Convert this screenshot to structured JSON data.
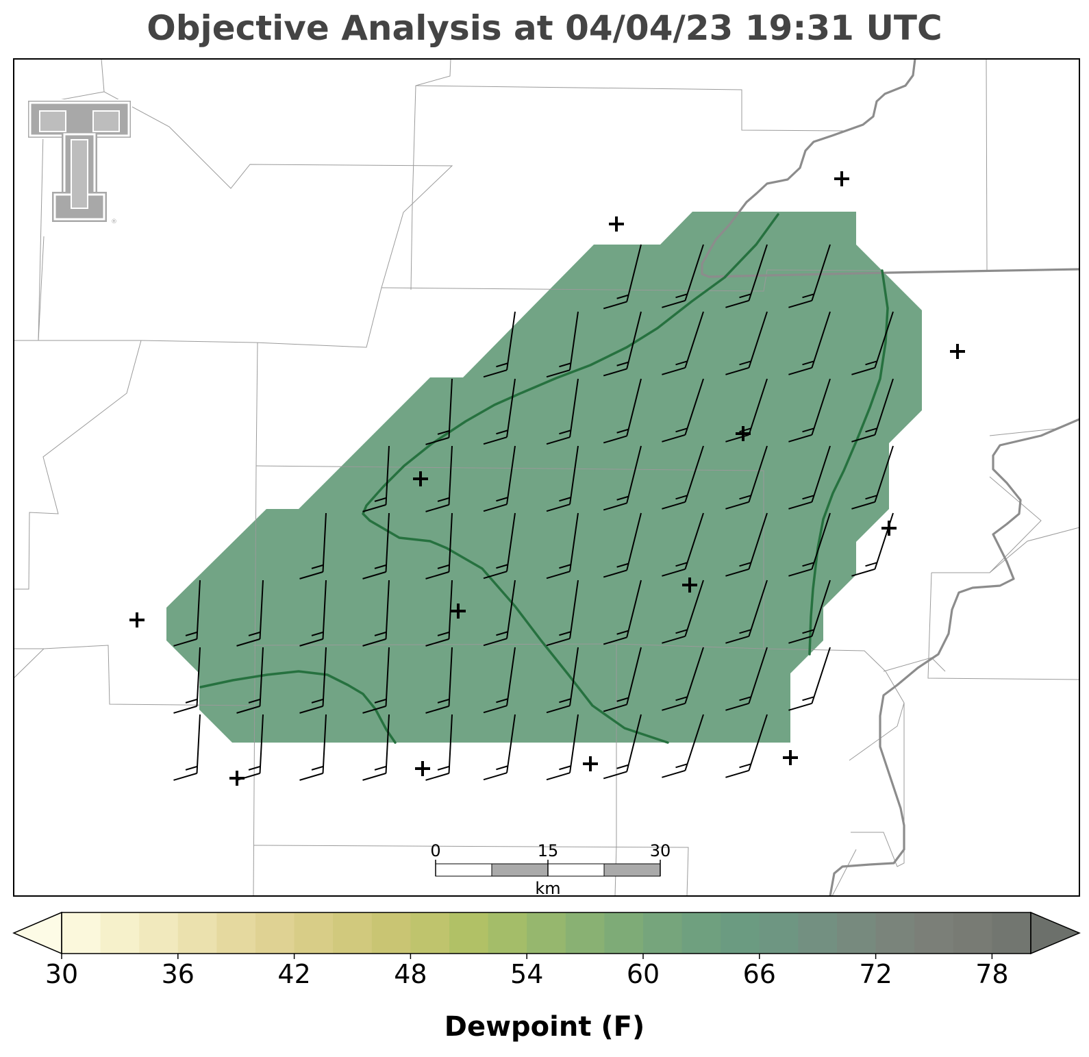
{
  "title": "Objective Analysis at 04/04/23 19:31 UTC",
  "colorbar": {
    "label": "Dewpoint (F)",
    "ticks": [
      "30",
      "36",
      "42",
      "48",
      "54",
      "60",
      "66",
      "72",
      "78"
    ],
    "min": 30,
    "max": 80,
    "step": 2,
    "colors": [
      "#fbf8dc",
      "#f6f1cb",
      "#f1e9bd",
      "#ebe1ae",
      "#e5d99f",
      "#dfd293",
      "#d8cd87",
      "#d1c97d",
      "#c9c573",
      "#bfc46d",
      "#b1c166",
      "#a4bd69",
      "#96b76e",
      "#89b173",
      "#7eab77",
      "#76a57c",
      "#6fa07f",
      "#6b9b81",
      "#6e9682",
      "#739081",
      "#778a7e",
      "#7a847b",
      "#7b7f78",
      "#787b74",
      "#727670"
    ],
    "extend": "both"
  },
  "scalebar": {
    "ticks": [
      "0",
      "15",
      "30"
    ],
    "unit": "km"
  },
  "logo": {
    "text": "TT",
    "registered": "®"
  },
  "colors": {
    "field_fill": "#6a9f7e",
    "boundary_line": "#26713f",
    "river": "#8c8c8c",
    "county_lines": "#9a9a9a",
    "title_color": "#444444"
  },
  "legend_icons": [
    "station-plus-icon",
    "wind-barb-icon"
  ]
}
